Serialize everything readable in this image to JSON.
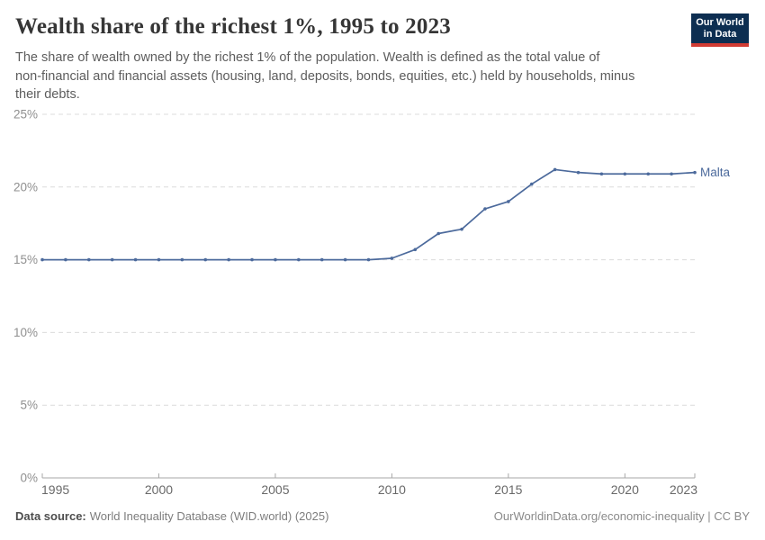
{
  "header": {
    "subtitle_lines": [
      "The share of wealth owned by the richest 1% of the population. Wealth is defined as the total value of",
      "non-financial and financial assets (housing, land, deposits, bonds, equities, etc.) held by households, minus",
      "their debts."
    ],
    "logo": {
      "line1": "Our World",
      "line2": "in Data"
    }
  },
  "chart_data": {
    "type": "line",
    "title": "Wealth share of the richest 1%, 1995 to 2023",
    "x": [
      1995,
      1996,
      1997,
      1998,
      1999,
      2000,
      2001,
      2002,
      2003,
      2004,
      2005,
      2006,
      2007,
      2008,
      2009,
      2010,
      2011,
      2012,
      2013,
      2014,
      2015,
      2016,
      2017,
      2018,
      2019,
      2020,
      2021,
      2022,
      2023
    ],
    "series": [
      {
        "name": "Malta",
        "color": "#4c6a9c",
        "values": [
          15.0,
          15.0,
          15.0,
          15.0,
          15.0,
          15.0,
          15.0,
          15.0,
          15.0,
          15.0,
          15.0,
          15.0,
          15.0,
          15.0,
          15.0,
          15.1,
          15.7,
          16.8,
          17.1,
          18.5,
          19.0,
          20.2,
          21.2,
          21.0,
          20.9,
          20.9,
          20.9,
          20.9,
          21.0
        ]
      }
    ],
    "x_ticks": [
      1995,
      2000,
      2005,
      2010,
      2015,
      2020,
      2023
    ],
    "y_ticks": [
      0,
      5,
      10,
      15,
      20,
      25
    ],
    "y_unit": "%",
    "xlim": [
      1995,
      2023
    ],
    "ylim": [
      0,
      25
    ],
    "grid": "horizontal-dashed",
    "legend_position": "end-of-line-label"
  },
  "footer": {
    "source_label": "Data source:",
    "source_text": "World Inequality Database (WID.world) (2025)",
    "credit": "OurWorldinData.org/economic-inequality | CC BY"
  },
  "colors": {
    "line": "#4c6a9c",
    "logo_bg": "#0d2e51",
    "logo_accent": "#d13b33",
    "gridline": "#dcdcdc",
    "axis": "#a7a7a7",
    "y_tick_label": "#8f8f8f",
    "x_tick_label": "#696969",
    "title_text": "#363636",
    "subtitle_text": "#5d5d5d"
  }
}
